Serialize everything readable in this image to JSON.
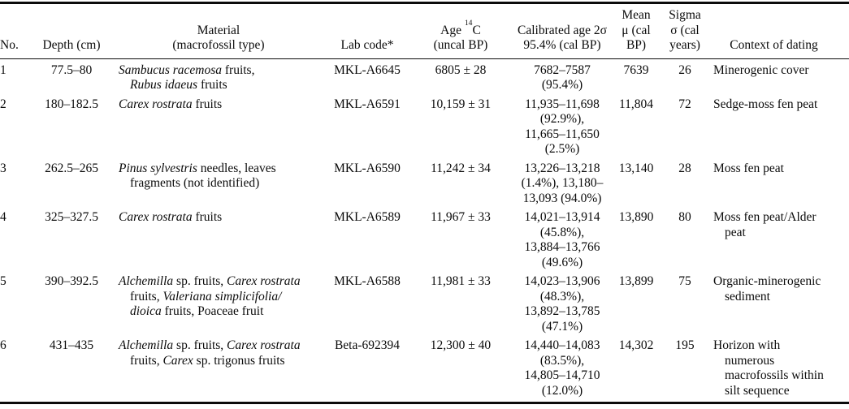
{
  "table": {
    "headers": {
      "no": "No.",
      "depth": "Depth (cm)",
      "material_lines": [
        "Material",
        "(macrofossil type)"
      ],
      "lab_code": "Lab code*",
      "age_lines": [
        [
          {
            "t": "Age "
          },
          {
            "t": "14",
            "sup": true
          },
          {
            "t": "C"
          }
        ],
        "(uncal BP)"
      ],
      "calibrated_lines": [
        "Calibrated age 2σ",
        "95.4% (cal BP)"
      ],
      "mean_lines": [
        "Mean",
        "μ (cal",
        "BP)"
      ],
      "sigma_lines": [
        "Sigma",
        "σ (cal",
        "years)"
      ],
      "context": "Context of dating"
    },
    "rows": [
      {
        "no": "1",
        "depth": "77.5–80",
        "material_lines": [
          [
            {
              "t": "Sambucus racemosa",
              "i": true
            },
            {
              "t": " fruits,"
            }
          ],
          [
            {
              "t": "Rubus idaeus",
              "i": true
            },
            {
              "t": " fruits"
            }
          ]
        ],
        "lab_code": "MKL-A6645",
        "age": "6805 ± 28",
        "calibrated_lines": [
          "7682–7587",
          "(95.4%)"
        ],
        "mean": "7639",
        "sigma": "26",
        "context_lines": [
          "Minerogenic cover"
        ]
      },
      {
        "no": "2",
        "depth": "180–182.5",
        "material_lines": [
          [
            {
              "t": "Carex rostrata",
              "i": true
            },
            {
              "t": " fruits"
            }
          ]
        ],
        "lab_code": "MKL-A6591",
        "age": "10,159 ± 31",
        "calibrated_lines": [
          "11,935–11,698",
          "(92.9%),",
          "11,665–11,650",
          "(2.5%)"
        ],
        "mean": "11,804",
        "sigma": "72",
        "context_lines": [
          "Sedge-moss fen peat"
        ]
      },
      {
        "no": "3",
        "depth": "262.5–265",
        "material_lines": [
          [
            {
              "t": "Pinus sylvestris",
              "i": true
            },
            {
              "t": " needles, leaves"
            }
          ],
          [
            {
              "t": "fragments (not identified)"
            }
          ]
        ],
        "lab_code": "MKL-A6590",
        "age": "11,242 ± 34",
        "calibrated_lines": [
          "13,226–13,218",
          "(1.4%), 13,180–",
          "13,093 (94.0%)"
        ],
        "mean": "13,140",
        "sigma": "28",
        "context_lines": [
          "Moss fen peat"
        ]
      },
      {
        "no": "4",
        "depth": "325–327.5",
        "material_lines": [
          [
            {
              "t": "Carex rostrata",
              "i": true
            },
            {
              "t": " fruits"
            }
          ]
        ],
        "lab_code": "MKL-A6589",
        "age": "11,967 ± 33",
        "calibrated_lines": [
          "14,021–13,914",
          "(45.8%),",
          "13,884–13,766",
          "(49.6%)"
        ],
        "mean": "13,890",
        "sigma": "80",
        "context_lines": [
          "Moss fen peat/Alder",
          "peat"
        ]
      },
      {
        "no": "5",
        "depth": "390–392.5",
        "material_lines": [
          [
            {
              "t": "Alchemilla",
              "i": true
            },
            {
              "t": " sp. fruits, "
            },
            {
              "t": "Carex rostrata",
              "i": true
            }
          ],
          [
            {
              "t": "fruits, "
            },
            {
              "t": "Valeriana simplicifolia/",
              "i": true
            }
          ],
          [
            {
              "t": "dioica",
              "i": true
            },
            {
              "t": " fruits, Poaceae fruit"
            }
          ]
        ],
        "lab_code": "MKL-A6588",
        "age": "11,981 ± 33",
        "calibrated_lines": [
          "14,023–13,906",
          "(48.3%),",
          "13,892–13,785",
          "(47.1%)"
        ],
        "mean": "13,899",
        "sigma": "75",
        "context_lines": [
          "Organic-minerogenic",
          "sediment"
        ]
      },
      {
        "no": "6",
        "depth": "431–435",
        "material_lines": [
          [
            {
              "t": "Alchemilla",
              "i": true
            },
            {
              "t": " sp. fruits, "
            },
            {
              "t": "Carex rostrata",
              "i": true
            }
          ],
          [
            {
              "t": "fruits, "
            },
            {
              "t": "Carex",
              "i": true
            },
            {
              "t": " sp. trigonus fruits"
            }
          ]
        ],
        "lab_code": "Beta-692394",
        "age": "12,300 ± 40",
        "calibrated_lines": [
          "14,440–14,083",
          "(83.5%),",
          "14,805–14,710",
          "(12.0%)"
        ],
        "mean": "14,302",
        "sigma": "195",
        "context_lines": [
          "Horizon with",
          "numerous",
          "macrofossils within",
          "silt sequence"
        ]
      }
    ]
  }
}
